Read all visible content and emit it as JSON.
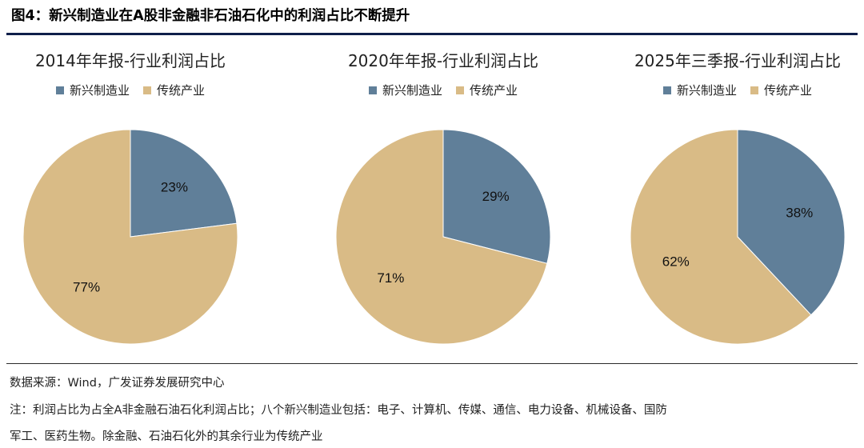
{
  "figure": {
    "title": "图4：新兴制造业在A股非金融非石油石化中的利润占比不断提升"
  },
  "colors": {
    "emerging": "#607f99",
    "traditional": "#d9bb86",
    "rule": "#0f1f4a"
  },
  "chart_data": [
    {
      "type": "pie",
      "title": "2014年年报-行业利润占比",
      "legend": [
        "新兴制造业",
        "传统产业"
      ],
      "slices": [
        {
          "name": "新兴制造业",
          "value": 23,
          "label": "23%"
        },
        {
          "name": "传统产业",
          "value": 77,
          "label": "77%"
        }
      ]
    },
    {
      "type": "pie",
      "title": "2020年年报-行业利润占比",
      "legend": [
        "新兴制造业",
        "传统产业"
      ],
      "slices": [
        {
          "name": "新兴制造业",
          "value": 29,
          "label": "29%"
        },
        {
          "name": "传统产业",
          "value": 71,
          "label": "71%"
        }
      ]
    },
    {
      "type": "pie",
      "title": "2025年三季报-行业利润占比",
      "legend": [
        "新兴制造业",
        "传统产业"
      ],
      "slices": [
        {
          "name": "新兴制造业",
          "value": 38,
          "label": "38%"
        },
        {
          "name": "传统产业",
          "value": 62,
          "label": "62%"
        }
      ]
    }
  ],
  "notes": {
    "source": "数据来源：Wind，广发证券发展研究中心",
    "note_line1": "注：利润占比为占全A非金融石油石化利润占比；八个新兴制造业包括：电子、计算机、传媒、通信、电力设备、机械设备、国防",
    "note_line2": "军工、医药生物。除金融、石油石化外的其余行业为传统产业"
  }
}
